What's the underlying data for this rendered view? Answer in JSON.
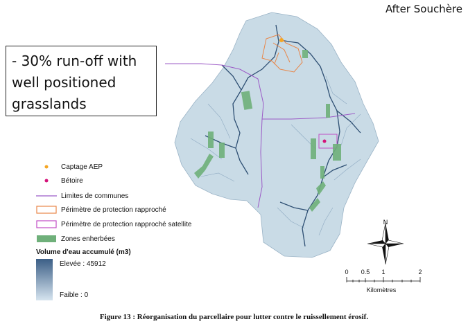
{
  "attribution": "After Souchère",
  "callout": {
    "lines": [
      "- 30% run-off with",
      "well positioned",
      "grasslands"
    ]
  },
  "legend": {
    "items": [
      {
        "label": "Captage AEP",
        "symbol": "point-icon",
        "color": "#f5a623"
      },
      {
        "label": "Bétoire",
        "symbol": "point-icon",
        "color": "#d4147a"
      },
      {
        "label": "Limites de communes",
        "symbol": "line-icon",
        "color": "#9b59c6"
      },
      {
        "label": "Périmètre de protection rapproché",
        "symbol": "box-icon",
        "color": "#e8874a"
      },
      {
        "label": "Périmètre de protection rapproché satellite",
        "symbol": "box-icon",
        "color": "#c04cc4"
      },
      {
        "label": "Zones enherbées",
        "symbol": "fill-icon",
        "color": "#6fb07a"
      }
    ],
    "volume_title": "Volume d'eau accumulé (m3)",
    "high_label": "Elevée : 45912",
    "low_label": "Faible : 0",
    "ramp_colors": [
      "#3b5e86",
      "#d6e4ef"
    ]
  },
  "north_arrow": {
    "label": "N"
  },
  "scalebar": {
    "ticks": [
      "0",
      "0.5",
      "1",
      "2"
    ],
    "unit": "Kilomètres"
  },
  "caption": "Figure 13 : Réorganisation du parcellaire pour lutter contre le ruissellement érosif.",
  "colors": {
    "watershed": "#c9dbe6",
    "streams": "#2e4f73",
    "grassland": "#6fb07a",
    "commune_line": "#9b59c6"
  }
}
